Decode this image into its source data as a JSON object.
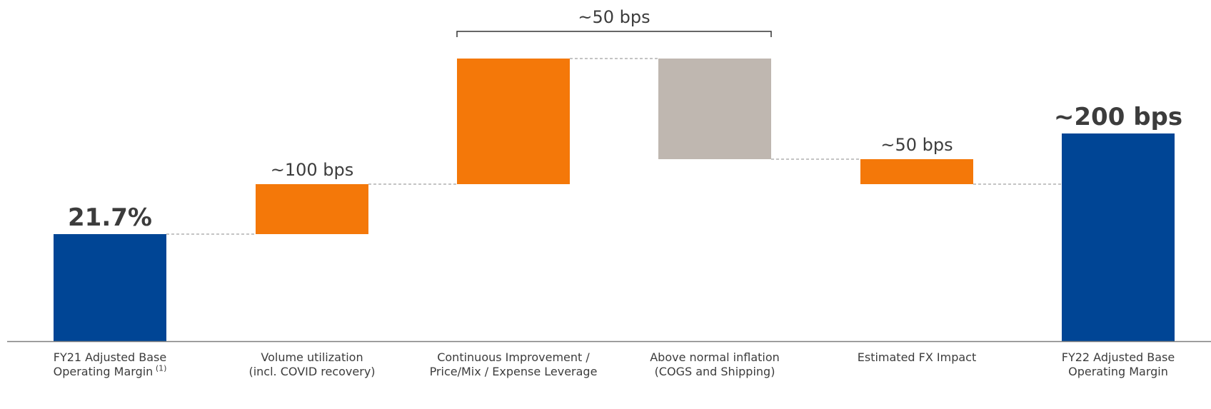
{
  "chart_data": {
    "type": "bar",
    "subtype": "waterfall",
    "title": "",
    "xlabel": "",
    "ylabel": "",
    "unit": "bps",
    "categories": [
      {
        "line1": "FY21 Adjusted Base",
        "line2": "Operating Margin",
        "note": "(1)"
      },
      {
        "line1": "Volume utilization",
        "line2": "(incl. COVID recovery)",
        "note": ""
      },
      {
        "line1": "Continuous Improvement /",
        "line2": "Price/Mix / Expense Leverage",
        "note": ""
      },
      {
        "line1": "Above normal inflation",
        "line2": "(COGS and Shipping)",
        "note": ""
      },
      {
        "line1": "Estimated FX Impact",
        "line2": "",
        "note": ""
      },
      {
        "line1": "FY22 Adjusted Base",
        "line2": "Operating Margin",
        "note": ""
      }
    ],
    "steps": [
      {
        "kind": "total",
        "base": 0,
        "value": 150,
        "label": "21.7%",
        "color": "#004595",
        "bold": true
      },
      {
        "kind": "delta",
        "base": 150,
        "value": 70,
        "label": "~100 bps",
        "color": "#f47809",
        "bold": false
      },
      {
        "kind": "delta",
        "base": 220,
        "value": 176,
        "label": "",
        "color": "#f47809",
        "bold": false
      },
      {
        "kind": "delta",
        "base": 396,
        "value": -141,
        "label": "",
        "color": "#bfb7b0",
        "bold": false
      },
      {
        "kind": "delta",
        "base": 255,
        "value": -35,
        "label": "~50 bps",
        "color": "#f47809",
        "bold": false
      },
      {
        "kind": "total",
        "base": 0,
        "value": 291,
        "label": "~200 bps",
        "color": "#004595",
        "bold": true
      }
    ],
    "bracket": {
      "from": 2,
      "to": 3,
      "label": "~50 bps"
    },
    "ylim": [
      0,
      480
    ],
    "grid": false,
    "legend": "none",
    "colors": {
      "total": "#004595",
      "increase": "#f47809",
      "inflation": "#bfb7b0",
      "connector": "#888888",
      "axis": "#7f7f7f",
      "text": "#3c3c3c"
    }
  }
}
